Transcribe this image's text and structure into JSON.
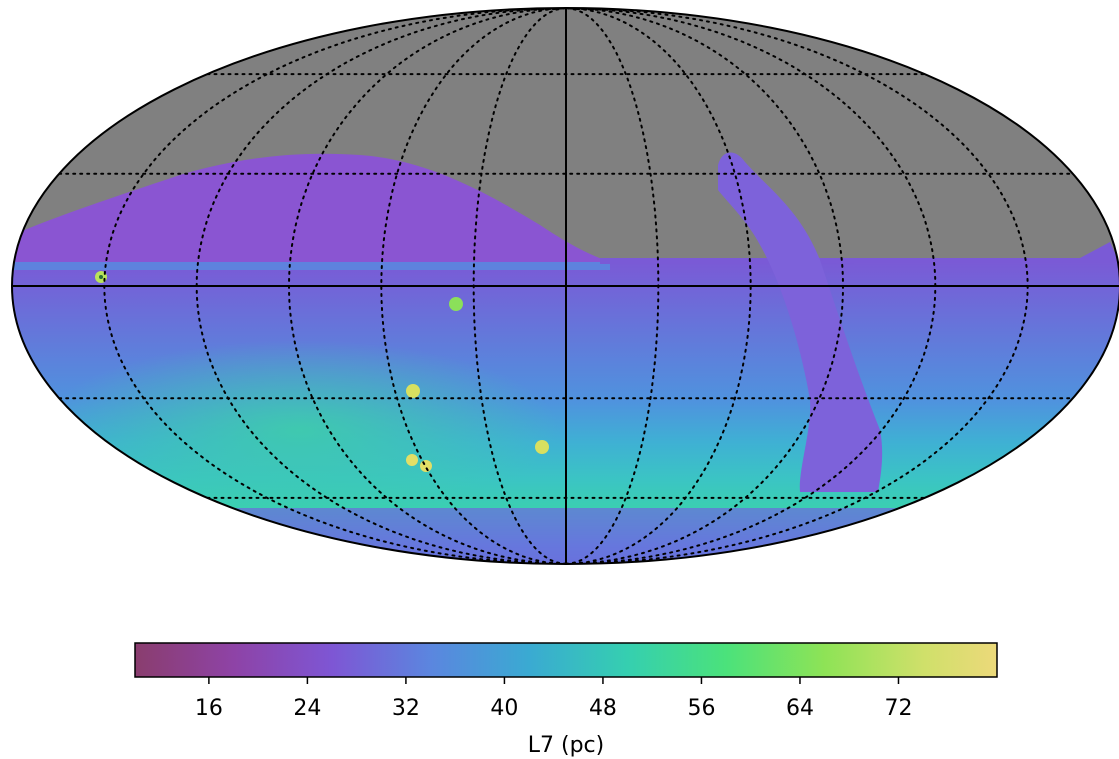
{
  "colorbar": {
    "label": "L7 (pc)",
    "range": [
      10,
      80
    ],
    "ticks": [
      16,
      24,
      32,
      40,
      48,
      56,
      64,
      72
    ],
    "tick_labels": [
      "16",
      "24",
      "32",
      "40",
      "48",
      "56",
      "64",
      "72"
    ],
    "stops": [
      {
        "v": 10,
        "c": "#8a3d6e"
      },
      {
        "v": 18,
        "c": "#8e43a6"
      },
      {
        "v": 26,
        "c": "#7e56d4"
      },
      {
        "v": 34,
        "c": "#5b86df"
      },
      {
        "v": 42,
        "c": "#3aaad2"
      },
      {
        "v": 50,
        "c": "#35cfb0"
      },
      {
        "v": 58,
        "c": "#4be27b"
      },
      {
        "v": 66,
        "c": "#8ee356"
      },
      {
        "v": 74,
        "c": "#cfe06a"
      },
      {
        "v": 80,
        "c": "#ecd97a"
      }
    ]
  },
  "map": {
    "projection": "mollweide",
    "graticule": "dotted",
    "masked_color": "#808080"
  }
}
